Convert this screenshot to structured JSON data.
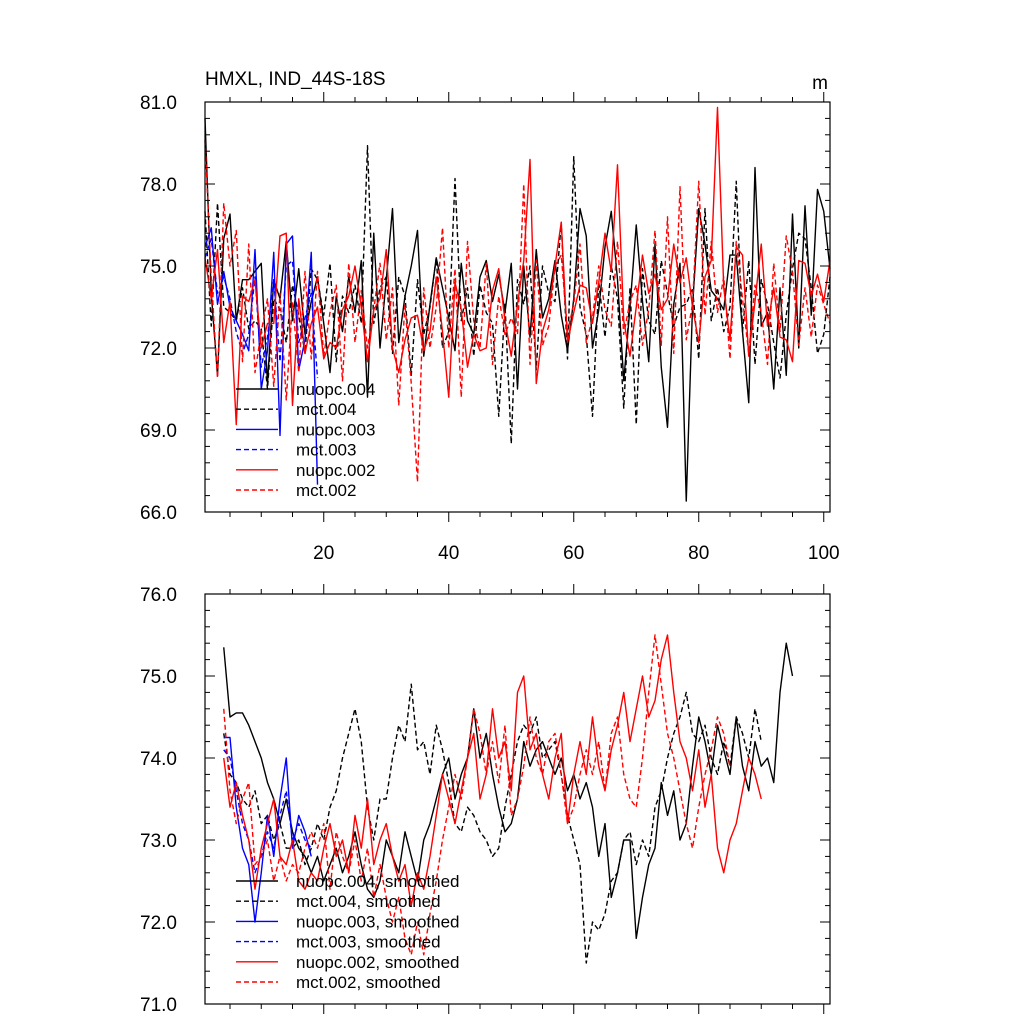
{
  "chart_data": [
    {
      "type": "line",
      "title": "HMXL, IND_44S-18S",
      "units": "m",
      "xlim": [
        1,
        101
      ],
      "ylim": [
        66,
        81
      ],
      "xticks": [
        20,
        40,
        60,
        80,
        100
      ],
      "xtick_labels": [
        "20",
        "40",
        "60",
        "80",
        "100"
      ],
      "yticks": [
        66,
        69,
        72,
        75,
        78,
        81
      ],
      "ytick_labels": [
        "66.0",
        "69.0",
        "72.0",
        "75.0",
        "78.0",
        "81.0"
      ],
      "legend": [
        "nuopc.004",
        "mct.004",
        "nuopc.003",
        "mct.003",
        "nuopc.002",
        "mct.002"
      ],
      "series": [
        {
          "name": "nuopc.004",
          "color": "#000000",
          "dash": "solid",
          "x_start": 1,
          "values": [
            80.4,
            74.0,
            71.0,
            76.0,
            76.9,
            73.0,
            74.5,
            74.5,
            74.8,
            75.1,
            70.7,
            74.5,
            73.8,
            75.9,
            73.0,
            74.9,
            72.5,
            73.7,
            74.6,
            72.9,
            71.1,
            73.9,
            72.6,
            74.6,
            73.3,
            75.2,
            70.2,
            76.2,
            72.0,
            74.5,
            77.1,
            72.2,
            73.9,
            75.0,
            76.3,
            71.7,
            73.6,
            75.3,
            74.2,
            73.1,
            71.9,
            75.1,
            73.0,
            72.5,
            74.6,
            75.2,
            73.7,
            74.7,
            73.3,
            75.1,
            70.5,
            75.0,
            72.4,
            75.6,
            73.1,
            73.8,
            75.2,
            73.2,
            71.9,
            73.8,
            77.1,
            76.1,
            72.0,
            73.4,
            75.7,
            77.0,
            74.5,
            70.8,
            73.5,
            76.5,
            73.7,
            71.5,
            75.8,
            71.3,
            69.1,
            73.6,
            75.1,
            66.4,
            73.5,
            77.1,
            75.8,
            74.1,
            73.8,
            73.4,
            75.4,
            75.4,
            72.6,
            70.0,
            78.6,
            72.8,
            73.3,
            70.5,
            74.2,
            71.0,
            76.9,
            72.0,
            77.2,
            73.2,
            77.8,
            77.0,
            74.9
          ]
        },
        {
          "name": "mct.004",
          "color": "#000000",
          "dash": "dashed",
          "x_start": 1,
          "values": [
            77.0,
            72.8,
            77.3,
            73.5,
            73.3,
            73.0,
            74.2,
            72.7,
            73.0,
            72.7,
            70.5,
            73.8,
            73.4,
            72.2,
            74.3,
            73.2,
            71.8,
            74.9,
            74.5,
            73.2,
            75.1,
            71.5,
            73.9,
            73.3,
            74.3,
            72.9,
            79.4,
            72.9,
            74.2,
            74.6,
            71.8,
            74.6,
            73.9,
            71.0,
            74.5,
            72.5,
            73.5,
            75.3,
            72.0,
            72.6,
            78.2,
            73.0,
            74.2,
            71.7,
            74.3,
            73.3,
            72.9,
            69.5,
            73.6,
            68.5,
            74.5,
            73.6,
            75.0,
            71.2,
            75.0,
            74.0,
            73.7,
            76.6,
            71.6,
            79.0,
            73.5,
            72.5,
            69.5,
            74.4,
            72.4,
            75.0,
            73.8,
            69.8,
            74.2,
            69.2,
            74.9,
            73.0,
            72.5,
            75.2,
            74.0,
            72.8,
            73.5,
            73.6,
            74.2,
            71.6,
            77.1,
            73.0,
            74.2,
            72.6,
            73.5,
            78.1,
            72.6,
            75.2,
            71.4,
            74.5,
            73.6,
            72.2,
            70.9,
            73.2,
            74.9,
            76.2,
            76.0,
            74.2,
            71.8,
            72.5,
            74.6
          ]
        },
        {
          "name": "nuopc.003",
          "color": "#0000ff",
          "dash": "solid",
          "x_start": 1,
          "values": [
            75.7,
            76.4,
            73.6,
            74.8,
            73.5,
            73.0,
            72.5,
            71.9,
            75.6,
            70.5,
            71.9,
            75.5,
            68.8,
            75.8,
            76.1,
            71.2,
            72.3,
            75.5,
            67.0
          ]
        },
        {
          "name": "mct.003",
          "color": "#0000ff",
          "dash": "dashed",
          "x_start": 1,
          "values": [
            75.3,
            76.0,
            74.0,
            74.6,
            73.8,
            72.6,
            71.8,
            72.5,
            74.6,
            71.3,
            72.4,
            74.5,
            71.5,
            75.0,
            75.2,
            72.2,
            73.1,
            74.0,
            70.9
          ]
        },
        {
          "name": "nuopc.002",
          "color": "#ff0000",
          "dash": "solid",
          "x_start": 1,
          "values": [
            75.3,
            73.8,
            75.6,
            72.2,
            73.7,
            69.2,
            73.9,
            73.7,
            74.5,
            72.0,
            72.9,
            72.9,
            76.1,
            76.2,
            69.9,
            73.8,
            71.8,
            72.9,
            73.5,
            71.6,
            72.2,
            72.0,
            73.4,
            73.9,
            75.0,
            73.5,
            71.5,
            73.4,
            73.8,
            75.6,
            72.0,
            71.1,
            72.3,
            73.1,
            73.2,
            71.9,
            72.6,
            74.6,
            72.6,
            70.2,
            74.4,
            73.4,
            71.3,
            72.5,
            71.9,
            72.0,
            74.1,
            74.9,
            73.0,
            71.7,
            73.6,
            75.2,
            78.9,
            70.7,
            72.6,
            73.4,
            75.0,
            76.6,
            72.2,
            73.3,
            74.3,
            74.2,
            72.9,
            74.4,
            76.2,
            74.8,
            78.7,
            73.0,
            71.7,
            73.5,
            75.4,
            74.0,
            74.7,
            73.4,
            73.8,
            75.8,
            74.4,
            75.3,
            73.5,
            72.2,
            74.6,
            75.2,
            80.8,
            74.2,
            72.3,
            75.7,
            75.4,
            71.7,
            73.7,
            75.8,
            72.8,
            74.2,
            72.4,
            72.3,
            71.5,
            75.2,
            75.1,
            73.9,
            74.7,
            73.7,
            75.2
          ]
        },
        {
          "name": "mct.002",
          "color": "#ff0000",
          "dash": "dashed",
          "x_start": 1,
          "values": [
            79.6,
            74.6,
            70.9,
            77.3,
            75.0,
            76.3,
            71.5,
            75.8,
            71.1,
            72.6,
            73.8,
            70.6,
            74.0,
            70.1,
            73.7,
            71.1,
            74.8,
            71.6,
            74.8,
            71.7,
            73.3,
            74.3,
            70.8,
            75.1,
            72.2,
            74.1,
            72.0,
            73.4,
            75.1,
            72.3,
            74.2,
            69.9,
            73.6,
            70.7,
            67.1,
            74.2,
            72.0,
            73.5,
            76.4,
            72.0,
            74.9,
            70.2,
            75.9,
            73.0,
            72.0,
            75.1,
            71.4,
            73.9,
            72.5,
            73.1,
            72.5,
            78.0,
            71.4,
            75.2,
            72.1,
            72.8,
            75.0,
            75.4,
            72.6,
            73.6,
            75.8,
            72.2,
            73.1,
            75.0,
            73.4,
            72.8,
            75.9,
            72.5,
            73.7,
            74.3,
            72.1,
            73.4,
            76.3,
            72.1,
            76.8,
            71.8,
            77.9,
            72.3,
            73.6,
            78.1,
            73.2,
            75.9,
            73.3,
            74.6,
            71.6,
            75.9,
            73.8,
            71.8,
            74.3,
            73.3,
            71.4,
            75.1,
            72.6,
            76.1,
            74.8,
            72.1,
            74.2,
            72.4,
            74.3,
            73.6,
            72.9
          ]
        }
      ]
    },
    {
      "type": "line",
      "title": "",
      "xlim": [
        1,
        101
      ],
      "ylim": [
        71,
        76
      ],
      "xticks": [
        20,
        40,
        60,
        80,
        100
      ],
      "xtick_labels": [],
      "yticks": [
        71,
        72,
        73,
        74,
        75,
        76
      ],
      "ytick_labels": [
        "71.0",
        "72.0",
        "73.0",
        "74.0",
        "75.0",
        "76.0"
      ],
      "legend": [
        "nuopc.004, smoothed",
        "mct.004, smoothed",
        "nuopc.003, smoothed",
        "mct.003, smoothed",
        "nuopc.002, smoothed",
        "mct.002, smoothed"
      ],
      "series": [
        {
          "name": "nuopc.004, smoothed",
          "color": "#000000",
          "dash": "solid",
          "x_start": 4,
          "values": [
            75.35,
            74.5,
            74.55,
            74.55,
            74.4,
            74.2,
            74.0,
            73.7,
            73.5,
            73.2,
            73.5,
            73.1,
            72.9,
            72.8,
            72.6,
            72.8,
            72.5,
            72.7,
            72.9,
            72.6,
            72.8,
            73.1,
            72.7,
            72.4,
            72.3,
            72.5,
            73.0,
            72.8,
            72.6,
            73.1,
            72.8,
            72.5,
            73.0,
            73.2,
            73.5,
            73.8,
            74.0,
            73.5,
            73.8,
            74.0,
            74.6,
            74.0,
            74.3,
            73.8,
            73.4,
            73.1,
            73.2,
            73.5,
            74.2,
            73.9,
            74.1,
            74.2,
            74.0,
            73.8,
            74.0,
            73.6,
            73.8,
            73.5,
            73.7,
            73.4,
            72.8,
            73.2,
            72.3,
            72.6,
            73.0,
            73.0,
            71.8,
            72.3,
            72.7,
            72.9,
            73.7,
            73.3,
            73.6,
            73.0,
            73.2,
            73.9,
            74.5,
            74.2,
            73.8,
            74.4,
            74.1,
            73.8,
            74.5,
            73.9,
            73.6,
            74.2,
            73.9,
            74.0,
            73.7,
            74.8,
            75.4,
            75.0
          ]
        },
        {
          "name": "mct.004, smoothed",
          "color": "#000000",
          "dash": "dashed",
          "x_start": 4,
          "values": [
            74.3,
            73.8,
            73.7,
            73.5,
            73.4,
            73.6,
            73.2,
            73.3,
            73.0,
            73.2,
            72.9,
            72.9,
            73.0,
            72.7,
            72.9,
            73.2,
            73.0,
            73.4,
            73.6,
            74.0,
            74.3,
            74.6,
            74.2,
            73.4,
            73.0,
            73.5,
            73.5,
            74.0,
            74.4,
            74.2,
            74.9,
            74.1,
            74.2,
            73.8,
            74.4,
            74.1,
            73.7,
            73.2,
            73.1,
            73.4,
            73.3,
            73.1,
            73.0,
            72.8,
            72.9,
            73.4,
            73.8,
            74.2,
            74.4,
            74.3,
            74.5,
            74.0,
            74.1,
            74.2,
            73.8,
            73.3,
            73.0,
            72.7,
            71.5,
            72.0,
            71.9,
            72.1,
            72.5,
            72.6,
            73.0,
            73.1,
            72.7,
            73.0,
            72.8,
            73.4,
            73.6,
            74.0,
            74.3,
            74.5,
            74.8,
            74.3,
            74.2,
            74.4,
            74.0,
            73.8,
            74.2,
            73.9,
            74.5,
            74.3,
            74.0,
            74.6,
            74.2
          ]
        },
        {
          "name": "nuopc.003, smoothed",
          "color": "#0000ff",
          "dash": "solid",
          "x_start": 4,
          "values": [
            74.25,
            74.25,
            73.4,
            72.9,
            72.7,
            72.0,
            72.6,
            73.3,
            72.8,
            73.5,
            74.0,
            72.9,
            73.3,
            73.1,
            72.8
          ]
        },
        {
          "name": "mct.003, smoothed",
          "color": "#0000ff",
          "dash": "dashed",
          "x_start": 4,
          "values": [
            74.1,
            74.0,
            73.6,
            73.2,
            73.0,
            72.6,
            72.8,
            73.1,
            72.9,
            73.3,
            73.6,
            73.0,
            73.2,
            73.0,
            72.9
          ]
        },
        {
          "name": "nuopc.002, smoothed",
          "color": "#ff0000",
          "dash": "solid",
          "x_start": 4,
          "values": [
            74.0,
            73.4,
            73.7,
            73.3,
            73.0,
            72.4,
            72.9,
            73.2,
            73.5,
            72.8,
            72.7,
            73.0,
            72.5,
            72.4,
            72.6,
            72.5,
            72.9,
            73.2,
            72.8,
            73.0,
            72.6,
            73.3,
            72.9,
            73.5,
            72.7,
            73.0,
            73.2,
            72.8,
            72.5,
            72.7,
            72.2,
            72.6,
            72.4,
            72.8,
            73.3,
            73.8,
            73.5,
            73.2,
            73.6,
            74.0,
            74.3,
            73.5,
            73.8,
            74.6,
            74.0,
            74.2,
            73.6,
            74.8,
            75.0,
            74.1,
            74.3,
            73.8,
            73.5,
            74.0,
            74.3,
            73.2,
            73.8,
            74.2,
            73.8,
            74.5,
            73.9,
            73.6,
            74.1,
            74.4,
            74.8,
            74.2,
            74.6,
            75.0,
            74.5,
            74.7,
            75.2,
            75.5,
            74.8,
            74.2,
            74.0,
            73.6,
            74.1,
            73.4,
            73.8,
            72.9,
            72.6,
            73.0,
            73.2,
            73.6,
            74.0,
            73.8,
            73.5
          ]
        },
        {
          "name": "mct.002, smoothed",
          "color": "#ff0000",
          "dash": "dashed",
          "x_start": 4,
          "values": [
            74.6,
            73.6,
            73.2,
            73.5,
            73.7,
            72.7,
            72.8,
            73.0,
            72.5,
            72.8,
            72.5,
            72.7,
            72.6,
            72.9,
            73.1,
            72.9,
            73.2,
            72.4,
            73.1,
            72.8,
            72.6,
            73.0,
            72.5,
            72.9,
            72.3,
            72.7,
            72.3,
            72.0,
            72.3,
            71.8,
            71.6,
            72.0,
            71.6,
            72.1,
            72.5,
            73.0,
            73.4,
            73.8,
            73.5,
            74.0,
            74.6,
            74.3,
            73.8,
            74.2,
            73.7,
            74.4,
            73.3,
            73.5,
            73.9,
            74.5,
            74.0,
            73.8,
            74.2,
            74.3,
            73.8,
            73.2,
            73.4,
            73.8,
            74.1,
            73.8,
            74.2,
            73.6,
            74.3,
            74.5,
            73.8,
            73.5,
            73.4,
            74.0,
            74.8,
            75.5,
            74.9,
            74.3,
            74.0,
            73.6,
            73.2,
            72.9,
            73.4,
            73.8,
            74.1,
            74.5,
            74.3,
            73.9
          ]
        }
      ]
    }
  ]
}
